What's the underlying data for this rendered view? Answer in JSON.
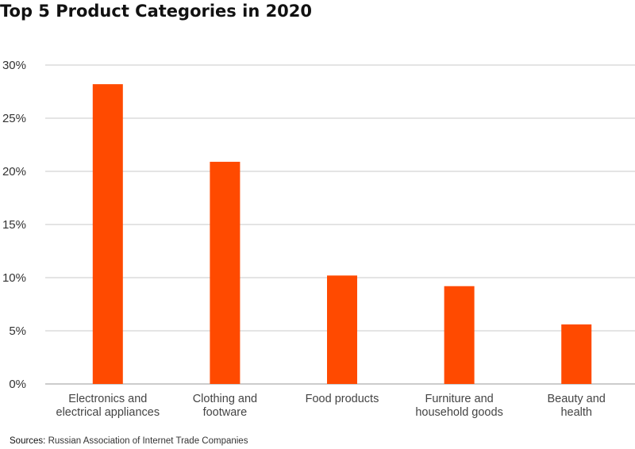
{
  "chart_data": {
    "type": "bar",
    "title": "Top 5 Product Categories in 2020",
    "categories": [
      [
        "Electronics and",
        "electrical appliances"
      ],
      [
        "Clothing and",
        "footware"
      ],
      [
        "Food products"
      ],
      [
        "Furniture and",
        "household goods"
      ],
      [
        "Beauty and",
        "health"
      ]
    ],
    "values": [
      28.2,
      20.9,
      10.2,
      9.2,
      5.6
    ],
    "ylim": [
      0,
      30
    ],
    "yticks": [
      0,
      5,
      10,
      15,
      20,
      25,
      30
    ],
    "ytick_labels": [
      "0%",
      "5%",
      "10%",
      "15%",
      "20%",
      "25%",
      "30%"
    ],
    "xlabel": "",
    "ylabel": "",
    "grid": true,
    "bar_color": "#FF4A00",
    "grid_color": "#C8C8C8"
  },
  "source": {
    "label": "Sources:",
    "text": "Russian Association of Internet Trade Companies"
  }
}
